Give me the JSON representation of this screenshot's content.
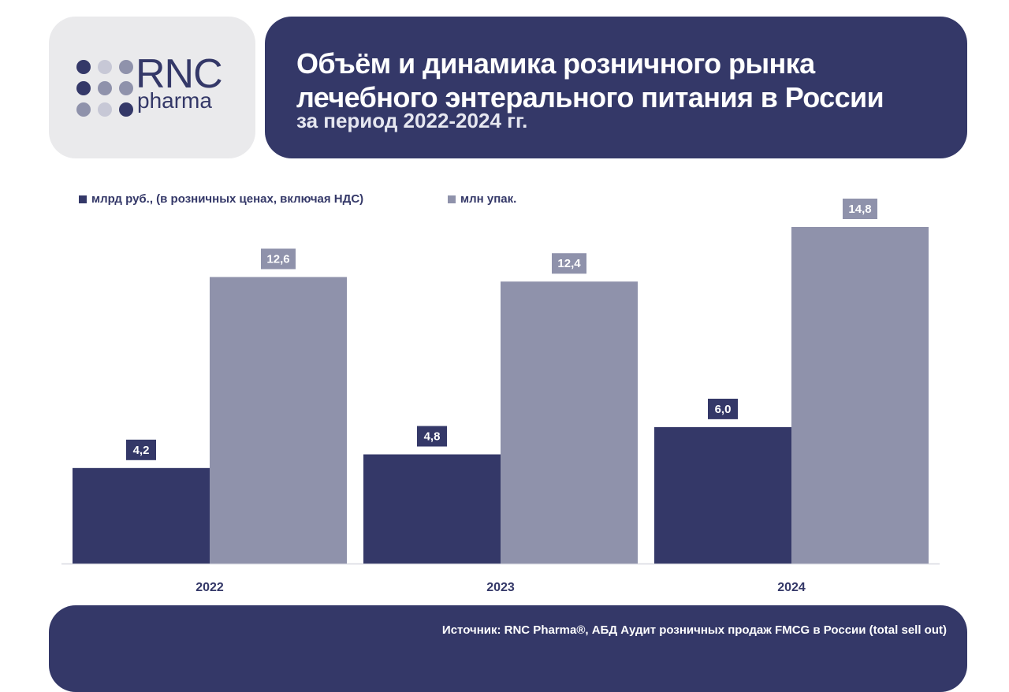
{
  "logo": {
    "name_top": "RNC",
    "name_bottom": "pharma",
    "colors": {
      "dark": "#343868",
      "mid": "#8f92ab",
      "light": "#c7c8d6"
    }
  },
  "header": {
    "title": "Объём и динамика розничного рынка лечебного энтерального питания в России",
    "subtitle": "за период 2022-2024 гг."
  },
  "legend": {
    "items": [
      {
        "label": "млрд руб., (в розничных ценах, включая НДС)",
        "color": "#343868"
      },
      {
        "label": "млн упак.",
        "color": "#8f92ab"
      }
    ]
  },
  "chart_data": {
    "type": "bar",
    "categories": [
      "2022",
      "2023",
      "2024"
    ],
    "series": [
      {
        "name": "млрд руб., (в розничных ценах, включая НДС)",
        "values": [
          4.2,
          4.8,
          6.0
        ],
        "labels": [
          "4,2",
          "4,8",
          "6,0"
        ],
        "color": "#343868"
      },
      {
        "name": "млн упак.",
        "values": [
          12.6,
          12.4,
          14.8
        ],
        "labels": [
          "12,6",
          "12,4",
          "14,8"
        ],
        "color": "#8f92ab"
      }
    ],
    "ylim": [
      0,
      14.8
    ],
    "grid": false,
    "legend_position": "top-left"
  },
  "footer": {
    "source": "Источник: RNC Pharma®, АБД Аудит розничных продаж FMCG в России (total sell out)"
  }
}
